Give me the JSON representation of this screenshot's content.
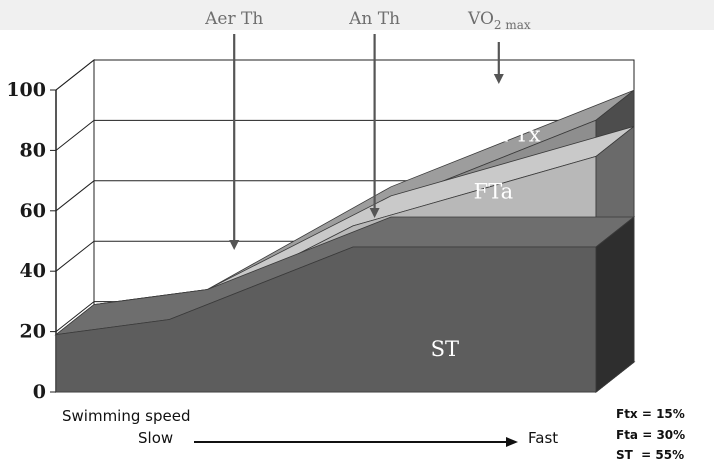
{
  "chart_data": {
    "type": "area",
    "y_ticks": [
      "0",
      "20",
      "40",
      "60",
      "80",
      "100"
    ],
    "ylim": [
      0,
      100
    ],
    "grid": true,
    "x_relative": [
      0.0,
      0.21,
      0.55,
      1.0
    ],
    "series": [
      {
        "name": "ST",
        "values": [
          19,
          24,
          48,
          48
        ],
        "color": "#5d5d5d"
      },
      {
        "name": "FTa",
        "values": [
          19,
          24,
          55,
          78
        ],
        "color": "#b8b8b8"
      },
      {
        "name": "FTx",
        "values": [
          19,
          24,
          58,
          90
        ],
        "color": "#8e8e8e"
      }
    ],
    "markers": [
      {
        "label": "Aer Th",
        "position": 0.33
      },
      {
        "label": "An Th",
        "position": 0.59
      },
      {
        "label_main": "VO",
        "label_sub": "2 max",
        "position": 0.82
      }
    ],
    "x_axis": {
      "title": "Swimming speed",
      "start": "Slow",
      "end": "Fast"
    },
    "legend": [
      {
        "text": "Ftx = 15%"
      },
      {
        "text": "Fta = 30%"
      },
      {
        "text": "ST  = 55%"
      }
    ]
  }
}
